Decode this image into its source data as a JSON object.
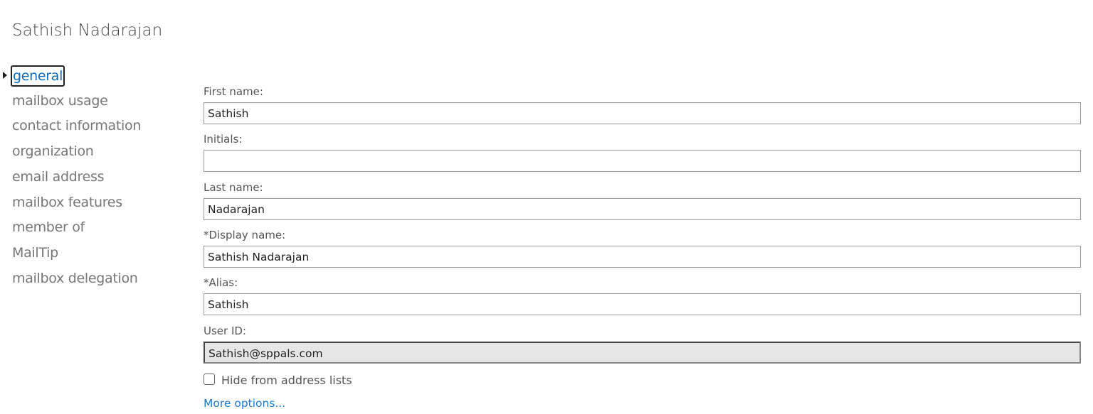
{
  "title": "Sathish Nadarajan",
  "nav": [
    "general",
    "mailbox usage",
    "contact information",
    "organization",
    "email address",
    "mailbox features",
    "member of",
    "MailTip",
    "mailbox delegation"
  ],
  "form": {
    "first_name": {
      "label": "First name:",
      "value": "Sathish"
    },
    "initials": {
      "label": "Initials:",
      "value": ""
    },
    "last_name": {
      "label": "Last name:",
      "value": "Nadarajan"
    },
    "display_name": {
      "label": "*Display name:",
      "value": "Sathish Nadarajan"
    },
    "alias": {
      "label": "*Alias:",
      "value": "Sathish"
    },
    "user_id": {
      "label": "User ID:",
      "value": "Sathish@sppals.com"
    },
    "hide_label": "Hide from address lists",
    "hide_checked": false,
    "more_options": "More options..."
  }
}
